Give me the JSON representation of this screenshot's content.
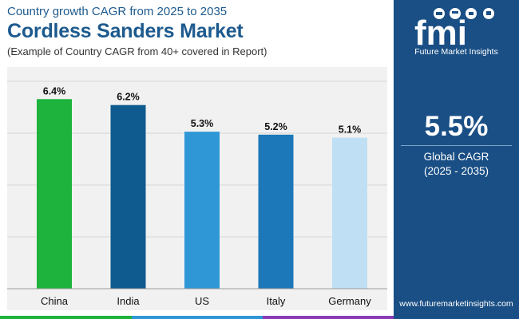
{
  "header": {
    "subtitle": "Country growth CAGR from 2025 to 2035",
    "title": "Cordless Sanders Market",
    "note": "(Example of Country CAGR from 40+ covered in Report)"
  },
  "chart_data": {
    "type": "bar",
    "title": "Cordless Sanders Market",
    "xlabel": "",
    "ylabel": "",
    "categories": [
      "China",
      "India",
      "US",
      "Italy",
      "Germany"
    ],
    "values": [
      6.4,
      6.2,
      5.3,
      5.2,
      5.1
    ],
    "data_labels": [
      "6.4%",
      "6.2%",
      "5.3%",
      "5.2%",
      "5.1%"
    ],
    "colors": [
      "#1db33c",
      "#0f5a8f",
      "#2f97d6",
      "#1c78b8",
      "#bfe0f4"
    ],
    "ylim": [
      0,
      7
    ],
    "yticks": [
      0,
      1.75,
      3.5,
      5.25,
      7
    ],
    "grid": true,
    "legend": "none"
  },
  "sidebar": {
    "logo_letters": "fmi",
    "logo_text": "Future Market Insights",
    "value": "5.5%",
    "label": "Global CAGR",
    "range": "(2025 - 2035)",
    "website": "www.futuremarketinsights.com"
  },
  "colors": {
    "title": "#1d5a8e",
    "sidebar_bg": "#1a4f85",
    "panel_bg": "#f1f1f1",
    "strip": [
      "#1db33c",
      "#2f97d6",
      "#8a3bb5"
    ]
  }
}
